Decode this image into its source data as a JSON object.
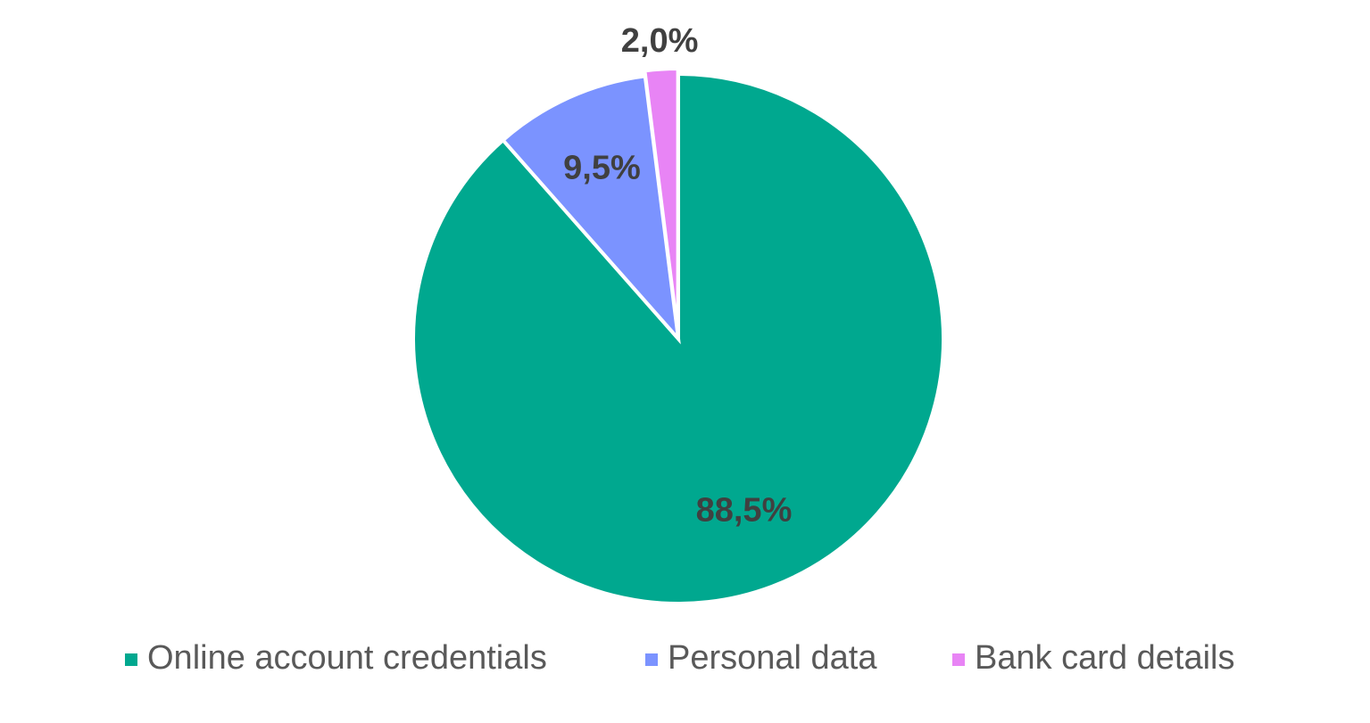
{
  "chart_data": {
    "type": "pie",
    "categories": [
      "Online account credentials",
      "Personal data",
      "Bank card details"
    ],
    "values": [
      88.5,
      9.5,
      2.0
    ],
    "value_labels": [
      "88,5%",
      "9,5%",
      "2,0%"
    ],
    "colors": [
      "#00a88f",
      "#7b93ff",
      "#e884f5"
    ],
    "legend": "bottom"
  }
}
